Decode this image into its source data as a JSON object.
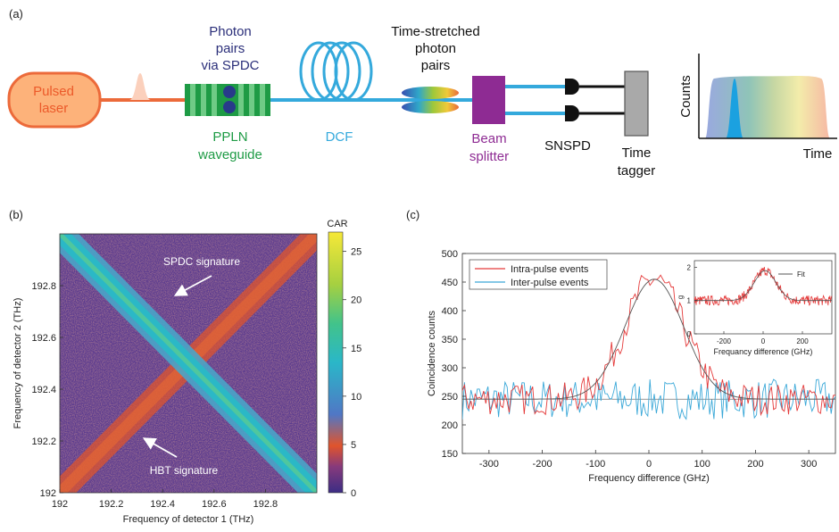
{
  "panel_a": {
    "label": "(a)",
    "laser_line1": "Pulsed",
    "laser_line2": "laser",
    "photon_pairs_line1": "Photon",
    "photon_pairs_line2": "pairs",
    "photon_pairs_line3": "via SPDC",
    "ppln_line1": "PPLN",
    "ppln_line2": "waveguide",
    "dcf": "DCF",
    "time_stretched_line1": "Time-stretched",
    "time_stretched_line2": "photon",
    "time_stretched_line3": "pairs",
    "beam_line1": "Beam",
    "beam_line2": "splitter",
    "snspd": "SNSPD",
    "tagger_line1": "Time",
    "tagger_line2": "tagger",
    "counts": "Counts",
    "time": "Time",
    "colors": {
      "laser_fill": "#fdb27a",
      "laser_stroke": "#ec6a3a",
      "ppln": "#1e9b45",
      "fiber": "#34a9dc",
      "splitter": "#8e2b93",
      "tagger": "#a9a9a9"
    }
  },
  "panel_b": {
    "label": "(b)",
    "annotation_spdc": "SPDC signature",
    "annotation_hbt": "HBT signature",
    "colorbar_title": "CAR",
    "colorbar_ticks": [
      0,
      5,
      10,
      15,
      20,
      25
    ],
    "colorbar_max": 27,
    "xlabel": "Frequency of detector 1 (THz)",
    "ylabel": "Frequency of detector 2 (THz)",
    "x_ticks": [
      "192",
      "192.2",
      "192.4",
      "192.6",
      "192.8"
    ],
    "y_ticks": [
      "192",
      "192.2",
      "192.4",
      "192.6",
      "192.8"
    ]
  },
  "chart_data": [
    {
      "type": "line",
      "panel": "(c)",
      "xlabel": "Frequency difference (GHz)",
      "ylabel": "Coincidence counts",
      "xlim": [
        -350,
        350
      ],
      "ylim": [
        150,
        500
      ],
      "x_ticks": [
        -300,
        -200,
        -100,
        0,
        100,
        200,
        300
      ],
      "y_ticks": [
        150,
        200,
        250,
        300,
        350,
        400,
        450,
        500
      ],
      "legend": "top-left",
      "series": [
        {
          "name": "Intra-pulse events",
          "color": "#e53a3a",
          "baseline": 245,
          "peak": 455,
          "center": 10,
          "sigma": 55
        },
        {
          "name": "Inter-pulse events",
          "color": "#3aa8d8",
          "baseline": 245,
          "peak": 245
        }
      ],
      "fit": {
        "color": "#555555",
        "baseline": 245,
        "peak": 455,
        "center": 10,
        "sigma": 55
      }
    },
    {
      "type": "line",
      "panel": "(c) inset",
      "xlabel": "Frequancy difference (GHz)",
      "ylabel": "g",
      "xlim": [
        -350,
        350
      ],
      "ylim": [
        0,
        2.2
      ],
      "x_ticks": [
        -200,
        0,
        200
      ],
      "y_ticks": [
        0,
        1,
        2
      ],
      "legend": "top-right",
      "series": [
        {
          "name": "",
          "color": "#e53a3a",
          "baseline": 1.0,
          "peak": 1.9,
          "center": 10,
          "sigma": 55
        }
      ],
      "fit": {
        "name": "Fit",
        "color": "#555555"
      }
    },
    {
      "type": "area",
      "panel": "(a) inset",
      "xlabel": "Time",
      "ylabel": "Counts"
    }
  ]
}
